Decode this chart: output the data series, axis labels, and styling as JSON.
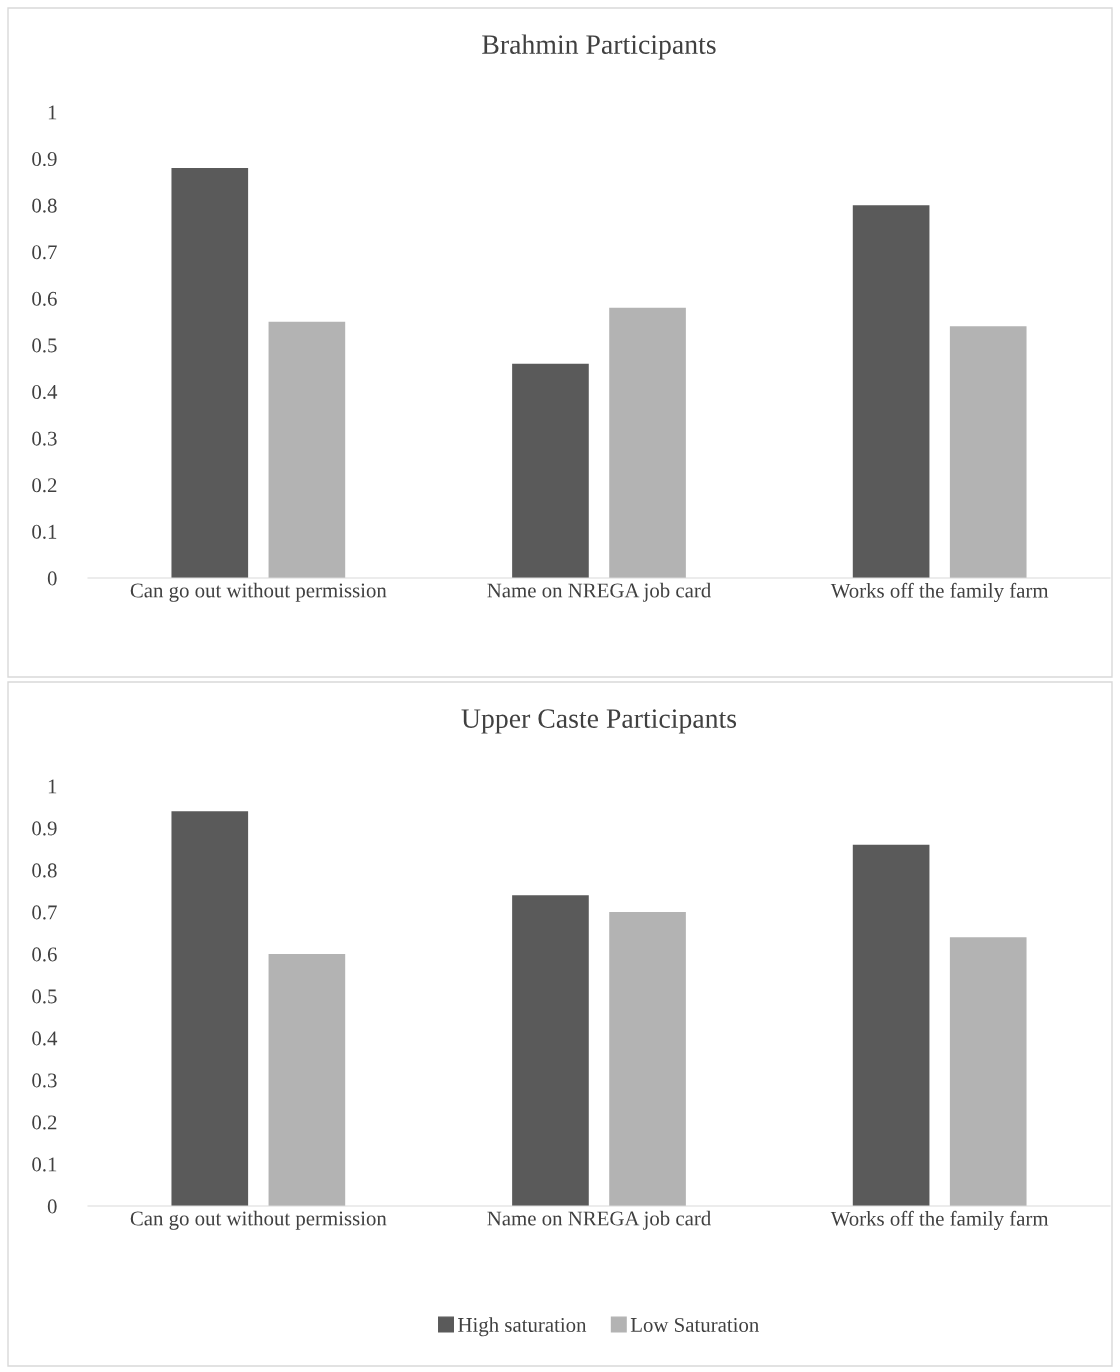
{
  "chart_data": [
    {
      "type": "bar",
      "title": "Brahmin Participants",
      "categories": [
        "Can go out without permission",
        "Name on NREGA job card",
        "Works off the family farm"
      ],
      "series": [
        {
          "color": "#5a5a5a",
          "values": [
            0.88,
            0.46,
            0.8
          ]
        },
        {
          "color": "#b3b3b3",
          "values": [
            0.55,
            0.58,
            0.54
          ]
        }
      ],
      "ylim": [
        0,
        1
      ],
      "yticks": [
        0,
        0.1,
        0.2,
        0.3,
        0.4,
        0.5,
        0.6,
        0.7,
        0.8,
        0.9,
        1
      ],
      "grid": false,
      "legend": false
    },
    {
      "type": "bar",
      "title": "Upper Caste Participants",
      "categories": [
        "Can go out without permission",
        "Name on NREGA job card",
        "Works off the family farm"
      ],
      "series": [
        {
          "name": "High saturation",
          "color": "#5a5a5a",
          "values": [
            0.94,
            0.74,
            0.86
          ]
        },
        {
          "name": "Low Saturation",
          "color": "#b3b3b3",
          "values": [
            0.6,
            0.7,
            0.64
          ]
        }
      ],
      "ylim": [
        0,
        1
      ],
      "yticks": [
        0,
        0.1,
        0.2,
        0.3,
        0.4,
        0.5,
        0.6,
        0.7,
        0.8,
        0.9,
        1
      ],
      "grid": false,
      "legend": "bottom"
    }
  ]
}
